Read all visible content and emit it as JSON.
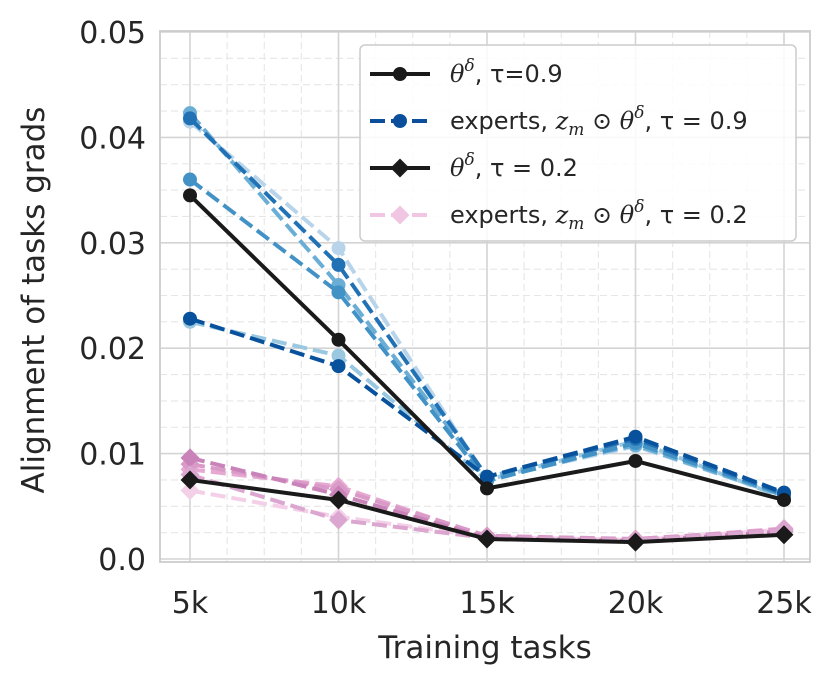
{
  "chart_data": {
    "type": "line",
    "title": "",
    "xlabel": "Training tasks",
    "ylabel": "Alignment of tasks grads",
    "categories": [
      "5k",
      "10k",
      "15k",
      "20k",
      "25k"
    ],
    "ylim": [
      0.0,
      0.05
    ],
    "yticks": [
      "0.0",
      "0.01",
      "0.02",
      "0.03",
      "0.04",
      "0.05"
    ],
    "grid": "on (major solid, minor dashed)",
    "legend_position": "top-right",
    "legend": [
      {
        "prefix": "",
        "math": "θ",
        "sup": "δ",
        "suffix": ", τ=0.9",
        "color": "#1a1a1a",
        "marker": "circle",
        "dash": "solid"
      },
      {
        "prefix": "experts, ",
        "math": "z",
        "sub": "m",
        "mid": " ⊙ θ",
        "sup": "δ",
        "suffix": ", τ = 0.9",
        "color": "#0b4f9c",
        "marker": "circle",
        "dash": "dashed"
      },
      {
        "prefix": "",
        "math": "θ",
        "sup": "δ",
        "suffix": ", τ = 0.2",
        "color": "#1a1a1a",
        "marker": "diamond",
        "dash": "solid"
      },
      {
        "prefix": "experts, ",
        "math": "z",
        "sub": "m",
        "mid": " ⊙ θ",
        "sup": "δ",
        "suffix": ", τ = 0.2",
        "color": "#f0c6e3",
        "marker": "diamond",
        "dash": "dashed"
      }
    ],
    "series": [
      {
        "name": "experts τ=0.9 (1)",
        "color": "#b7d4ea",
        "marker": "circle",
        "dash": "dashed",
        "values": [
          0.0415,
          0.0295,
          0.0076,
          0.0107,
          0.006
        ]
      },
      {
        "name": "experts τ=0.9 (2)",
        "color": "#9ac8e0",
        "marker": "circle",
        "dash": "dashed",
        "values": [
          0.0225,
          0.0193,
          0.0075,
          0.0112,
          0.0058
        ]
      },
      {
        "name": "experts τ=0.9 (3)",
        "color": "#6aaed6",
        "marker": "circle",
        "dash": "dashed",
        "values": [
          0.0423,
          0.026,
          0.0078,
          0.0108,
          0.006
        ]
      },
      {
        "name": "experts τ=0.9 (4)",
        "color": "#4292c6",
        "marker": "circle",
        "dash": "dashed",
        "values": [
          0.036,
          0.0253,
          0.0074,
          0.011,
          0.0061
        ]
      },
      {
        "name": "experts τ=0.9 (5)",
        "color": "#2171b5",
        "marker": "circle",
        "dash": "dashed",
        "values": [
          0.0418,
          0.0279,
          0.0078,
          0.0114,
          0.0062
        ]
      },
      {
        "name": "experts τ=0.9 (6)",
        "color": "#08519c",
        "marker": "circle",
        "dash": "dashed",
        "values": [
          0.0228,
          0.0183,
          0.0078,
          0.0116,
          0.0063
        ]
      },
      {
        "name": "experts τ=0.2 (1)",
        "color": "#f3cfe8",
        "marker": "diamond",
        "dash": "dashed",
        "values": [
          0.0065,
          0.004,
          0.0021,
          0.0018,
          0.0028
        ]
      },
      {
        "name": "experts τ=0.2 (2)",
        "color": "#e7a9d2",
        "marker": "diamond",
        "dash": "dashed",
        "values": [
          0.0085,
          0.0069,
          0.0021,
          0.0018,
          0.0029
        ]
      },
      {
        "name": "experts τ=0.2 (3)",
        "color": "#d99ac8",
        "marker": "diamond",
        "dash": "dashed",
        "values": [
          0.009,
          0.0066,
          0.0022,
          0.0019,
          0.0028
        ]
      },
      {
        "name": "experts τ=0.2 (4)",
        "color": "#c983b8",
        "marker": "diamond",
        "dash": "dashed",
        "values": [
          0.0096,
          0.0061,
          0.002,
          0.0017,
          0.0026
        ]
      },
      {
        "name": "experts τ=0.2 (5)",
        "color": "#dba6d0",
        "marker": "diamond",
        "dash": "dashed",
        "values": [
          0.008,
          0.0037,
          0.002,
          0.0018,
          0.0027
        ]
      },
      {
        "name": "θδ, τ=0.9",
        "color": "#1a1a1a",
        "marker": "circle",
        "dash": "solid",
        "values": [
          0.0345,
          0.0208,
          0.0067,
          0.0093,
          0.0056
        ]
      },
      {
        "name": "θδ, τ=0.2",
        "color": "#1a1a1a",
        "marker": "diamond",
        "dash": "solid",
        "values": [
          0.0075,
          0.0056,
          0.0019,
          0.0016,
          0.0023
        ]
      }
    ]
  }
}
